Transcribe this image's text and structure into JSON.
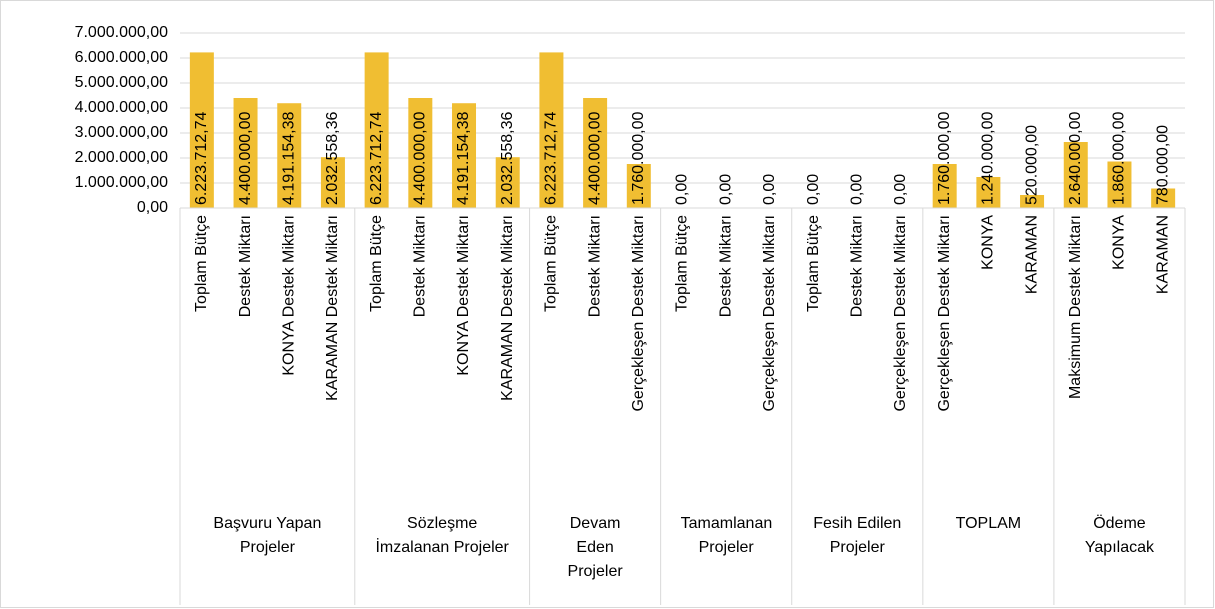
{
  "chart_data": {
    "type": "bar",
    "color": "#f0be32",
    "ylim": [
      0,
      7000000
    ],
    "yticks": [
      {
        "value": 0,
        "label": "0,00"
      },
      {
        "value": 1000000,
        "label": "1.000.000,00"
      },
      {
        "value": 2000000,
        "label": "2.000.000,00"
      },
      {
        "value": 3000000,
        "label": "3.000.000,00"
      },
      {
        "value": 4000000,
        "label": "4.000.000,00"
      },
      {
        "value": 5000000,
        "label": "5.000.000,00"
      },
      {
        "value": 6000000,
        "label": "6.000.000,00"
      },
      {
        "value": 7000000,
        "label": "7.000.000,00"
      }
    ],
    "grid": true,
    "groups": [
      {
        "label": "Başvuru Yapan Projeler",
        "categories": [
          "Toplam Bütçe",
          "Destek Miktarı",
          "KONYA Destek Miktarı",
          "KARAMAN Destek Miktarı"
        ],
        "values": [
          6223712.74,
          4400000,
          4191154.38,
          2032558.36
        ],
        "value_labels": [
          "6.223.712,74",
          "4.400.000,00",
          "4.191.154,38",
          "2.032.558,36"
        ]
      },
      {
        "label": "Sözleşme İmzalanan Projeler",
        "categories": [
          "Toplam Bütçe",
          "Destek Miktarı",
          "KONYA Destek Miktarı",
          "KARAMAN Destek Miktarı"
        ],
        "values": [
          6223712.74,
          4400000,
          4191154.38,
          2032558.36
        ],
        "value_labels": [
          "6.223.712,74",
          "4.400.000,00",
          "4.191.154,38",
          "2.032.558,36"
        ]
      },
      {
        "label": "Devam Eden Projeler",
        "categories": [
          "Toplam Bütçe",
          "Destek Miktarı",
          "Gerçekleşen Destek Miktarı"
        ],
        "values": [
          6223712.74,
          4400000,
          1760000
        ],
        "value_labels": [
          "6.223.712,74",
          "4.400.000,00",
          "1.760.000,00"
        ]
      },
      {
        "label": "Tamamlanan Projeler",
        "categories": [
          "Toplam Bütçe",
          "Destek Miktarı",
          "Gerçekleşen Destek Miktarı"
        ],
        "values": [
          0,
          0,
          0
        ],
        "value_labels": [
          "0,00",
          "0,00",
          "0,00"
        ]
      },
      {
        "label": "Fesih Edilen Projeler",
        "categories": [
          "Toplam Bütçe",
          "Destek Miktarı",
          "Gerçekleşen Destek Miktarı"
        ],
        "values": [
          0,
          0,
          0
        ],
        "value_labels": [
          "0,00",
          "0,00",
          "0,00"
        ]
      },
      {
        "label": "TOPLAM",
        "categories": [
          "Gerçekleşen Destek Miktarı",
          "KONYA",
          "KARAMAN"
        ],
        "values": [
          1760000,
          1240000,
          520000
        ],
        "value_labels": [
          "1.760.000,00",
          "1.240.000,00",
          "520.000,00"
        ]
      },
      {
        "label": "Ödeme Yapılacak",
        "categories": [
          "Maksimum Destek Miktarı",
          "KONYA",
          "KARAMAN"
        ],
        "values": [
          2640000,
          1860000,
          780000
        ],
        "value_labels": [
          "2.640.000,00",
          "1.860.000,00",
          "780.000,00"
        ]
      }
    ]
  }
}
